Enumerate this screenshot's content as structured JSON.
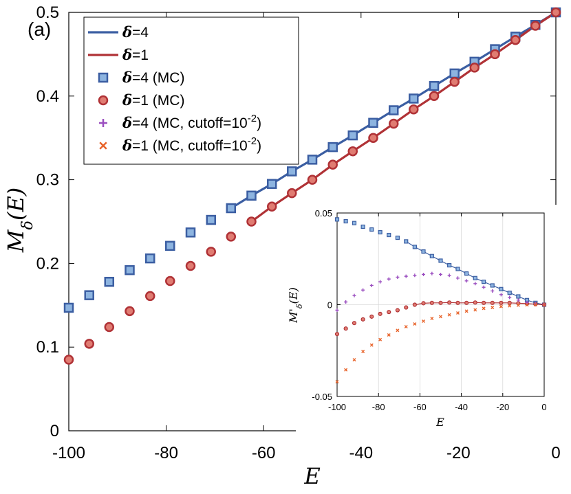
{
  "panel_label": "(a)",
  "chart_data": [
    {
      "type": "line",
      "xlabel": "E",
      "ylabel": "M_δ(E)",
      "xlim": [
        -100,
        0
      ],
      "ylim": [
        0,
        0.5
      ],
      "xticks": [
        -100,
        -80,
        -60,
        -40,
        -20,
        0
      ],
      "yticks": [
        0,
        0.1,
        0.2,
        0.3,
        0.4,
        0.5
      ],
      "xtick_labels": [
        "-100",
        "-80",
        "-60",
        "-40",
        "-20",
        "0"
      ],
      "ytick_labels": [
        "0",
        "0.1",
        "0.2",
        "0.3",
        "0.4",
        "0.5"
      ],
      "grid": false,
      "legend_position": "top-left",
      "series": [
        {
          "name": "δ=4",
          "kind": "line",
          "color": "#3b5ea2",
          "x": [
            -66.7,
            -62.5,
            -58.3,
            -54.2,
            -50.0,
            -45.8,
            -41.7,
            -37.5,
            -33.3,
            -29.2,
            -25.0,
            -20.8,
            -16.7,
            -12.5,
            -8.3,
            -4.2,
            0
          ],
          "y": [
            0.266,
            0.281,
            0.295,
            0.31,
            0.324,
            0.339,
            0.353,
            0.368,
            0.383,
            0.397,
            0.412,
            0.427,
            0.441,
            0.456,
            0.471,
            0.485,
            0.5
          ]
        },
        {
          "name": "δ=1",
          "kind": "line",
          "color": "#b03236",
          "x": [
            -62.5,
            -58.3,
            -54.2,
            -50.0,
            -45.8,
            -41.7,
            -37.5,
            -33.3,
            -29.2,
            -25.0,
            -20.8,
            -16.7,
            -12.5,
            -8.3,
            -4.2,
            0
          ],
          "y": [
            0.25,
            0.268,
            0.284,
            0.3,
            0.318,
            0.334,
            0.35,
            0.367,
            0.384,
            0.4,
            0.417,
            0.434,
            0.45,
            0.467,
            0.484,
            0.5
          ]
        },
        {
          "name": "δ=4 (MC)",
          "kind": "square",
          "color": "#3b5ea2",
          "fill": "#8db4e0",
          "x": [
            -100,
            -95.8,
            -91.7,
            -87.5,
            -83.3,
            -79.2,
            -75.0,
            -70.8,
            -66.7,
            -62.5,
            -58.3,
            -54.2,
            -50.0,
            -45.8,
            -41.7,
            -37.5,
            -33.3,
            -29.2,
            -25.0,
            -20.8,
            -16.7,
            -12.5,
            -8.3,
            -4.2,
            0
          ],
          "y": [
            0.147,
            0.162,
            0.178,
            0.192,
            0.206,
            0.221,
            0.237,
            0.252,
            0.266,
            0.281,
            0.295,
            0.31,
            0.324,
            0.339,
            0.353,
            0.368,
            0.383,
            0.397,
            0.412,
            0.427,
            0.441,
            0.456,
            0.471,
            0.485,
            0.5
          ]
        },
        {
          "name": "δ=1 (MC)",
          "kind": "circle",
          "color": "#b03236",
          "fill": "#e07c72",
          "x": [
            -100,
            -95.8,
            -91.7,
            -87.5,
            -83.3,
            -79.2,
            -75.0,
            -70.8,
            -66.7,
            -62.5,
            -58.3,
            -54.2,
            -50.0,
            -45.8,
            -41.7,
            -37.5,
            -33.3,
            -29.2,
            -25.0,
            -20.8,
            -16.7,
            -12.5,
            -8.3,
            -4.2,
            0
          ],
          "y": [
            0.085,
            0.104,
            0.124,
            0.143,
            0.161,
            0.179,
            0.197,
            0.214,
            0.232,
            0.25,
            0.268,
            0.284,
            0.3,
            0.318,
            0.334,
            0.35,
            0.367,
            0.384,
            0.4,
            0.417,
            0.434,
            0.45,
            0.467,
            0.484,
            0.5
          ]
        },
        {
          "name": "δ=4 (MC, cutoff=10⁻²)",
          "kind": "plus",
          "color": "#9b4fc0",
          "x": [],
          "y": []
        },
        {
          "name": "δ=1 (MC, cutoff=10⁻²)",
          "kind": "cross",
          "color": "#e8632a",
          "x": [],
          "y": []
        }
      ]
    },
    {
      "type": "line",
      "inset": true,
      "xlabel": "E",
      "ylabel": "M'_δ(E)",
      "xlim": [
        -100,
        0
      ],
      "ylim": [
        -0.05,
        0.05
      ],
      "xticks": [
        -100,
        -80,
        -60,
        -40,
        -20,
        0
      ],
      "yticks": [
        -0.05,
        0,
        0.05
      ],
      "xtick_labels": [
        "-100",
        "-80",
        "-60",
        "-40",
        "-20",
        "0"
      ],
      "ytick_labels": [
        "-0.05",
        "0",
        "0.05"
      ],
      "grid": true,
      "series": [
        {
          "name": "δ=4",
          "kind": "line",
          "color": "#3b5ea2",
          "x": [
            -66.7,
            -62.5,
            -58.3,
            -54.2,
            -50.0,
            -45.8,
            -41.7,
            -37.5,
            -33.3,
            -29.2,
            -25.0,
            -20.8,
            -16.7,
            -12.5,
            -8.3,
            -4.2,
            0
          ],
          "y": [
            0.0345,
            0.0315,
            0.029,
            0.0265,
            0.024,
            0.0215,
            0.0195,
            0.017,
            0.0145,
            0.0125,
            0.0105,
            0.0085,
            0.0065,
            0.0045,
            0.0025,
            0.001,
            0.0
          ]
        },
        {
          "name": "δ=1",
          "kind": "line",
          "color": "#b03236",
          "x": [
            -62.5,
            -58.3,
            -54.2,
            -50.0,
            -45.8,
            -41.7,
            -37.5,
            -33.3,
            -29.2,
            -25.0,
            -20.8,
            -16.7,
            -12.5,
            -8.3,
            -4.2,
            0
          ],
          "y": [
            0.0,
            0.0008,
            0.001,
            0.001,
            0.0012,
            0.001,
            0.001,
            0.0012,
            0.001,
            0.001,
            0.001,
            0.001,
            0.0008,
            0.0006,
            0.0003,
            0.0
          ]
        },
        {
          "name": "δ=4 (MC)",
          "kind": "square",
          "color": "#3b5ea2",
          "fill": "#8db4e0",
          "x": [
            -100,
            -95.8,
            -91.7,
            -87.5,
            -83.3,
            -79.2,
            -75.0,
            -70.8,
            -66.7,
            -62.5,
            -58.3,
            -54.2,
            -50.0,
            -45.8,
            -41.7,
            -37.5,
            -33.3,
            -29.2,
            -25.0,
            -20.8,
            -16.7,
            -12.5,
            -8.3,
            -4.2,
            0
          ],
          "y": [
            0.0465,
            0.0455,
            0.0445,
            0.0425,
            0.041,
            0.0395,
            0.038,
            0.0365,
            0.0345,
            0.0315,
            0.029,
            0.0265,
            0.024,
            0.0215,
            0.0195,
            0.017,
            0.0145,
            0.0125,
            0.0105,
            0.0085,
            0.0065,
            0.0045,
            0.0025,
            0.001,
            0.0
          ]
        },
        {
          "name": "δ=1 (MC)",
          "kind": "circle",
          "color": "#b03236",
          "fill": "#e07c72",
          "x": [
            -100,
            -95.8,
            -91.7,
            -87.5,
            -83.3,
            -79.2,
            -75.0,
            -70.8,
            -66.7,
            -62.5,
            -58.3,
            -54.2,
            -50.0,
            -45.8,
            -41.7,
            -37.5,
            -33.3,
            -29.2,
            -25.0,
            -20.8,
            -16.7,
            -12.5,
            -8.3,
            -4.2,
            0
          ],
          "y": [
            -0.016,
            -0.013,
            -0.01,
            -0.008,
            -0.0065,
            -0.005,
            -0.004,
            -0.003,
            -0.0015,
            0.0,
            0.0008,
            0.001,
            0.001,
            0.0012,
            0.001,
            0.001,
            0.0012,
            0.001,
            0.001,
            0.001,
            0.001,
            0.0008,
            0.0006,
            0.0003,
            0.0
          ]
        },
        {
          "name": "δ=4 (MC, cutoff=10⁻²)",
          "kind": "plus",
          "color": "#9b4fc0",
          "x": [
            -100,
            -95.8,
            -91.7,
            -87.5,
            -83.3,
            -79.2,
            -75.0,
            -70.8,
            -66.7,
            -62.5,
            -58.3,
            -54.2,
            -50.0,
            -45.8,
            -41.7,
            -37.5,
            -33.3,
            -29.2,
            -25.0,
            -20.8,
            -16.7,
            -12.5,
            -8.3,
            -4.2,
            0
          ],
          "y": [
            -0.003,
            0.0015,
            0.005,
            0.008,
            0.0105,
            0.0125,
            0.014,
            0.015,
            0.0155,
            0.016,
            0.0165,
            0.017,
            0.0165,
            0.016,
            0.0145,
            0.013,
            0.0115,
            0.0095,
            0.0075,
            0.0055,
            0.004,
            0.0025,
            0.0012,
            0.0004,
            0.0
          ]
        },
        {
          "name": "δ=1 (MC, cutoff=10⁻²)",
          "kind": "cross",
          "color": "#e8632a",
          "x": [
            -100,
            -95.8,
            -91.7,
            -87.5,
            -83.3,
            -79.2,
            -75.0,
            -70.8,
            -66.7,
            -62.5,
            -58.3,
            -54.2,
            -50.0,
            -45.8,
            -41.7,
            -37.5,
            -33.3,
            -29.2,
            -25.0,
            -20.8,
            -16.7,
            -12.5,
            -8.3,
            -4.2,
            0
          ],
          "y": [
            -0.042,
            -0.0355,
            -0.03,
            -0.0255,
            -0.022,
            -0.019,
            -0.0165,
            -0.014,
            -0.012,
            -0.0105,
            -0.009,
            -0.0075,
            -0.0065,
            -0.0055,
            -0.0045,
            -0.0035,
            -0.0028,
            -0.002,
            -0.0015,
            -0.001,
            -0.0006,
            -0.0003,
            -0.0001,
            0.0,
            0.0
          ]
        }
      ]
    }
  ]
}
